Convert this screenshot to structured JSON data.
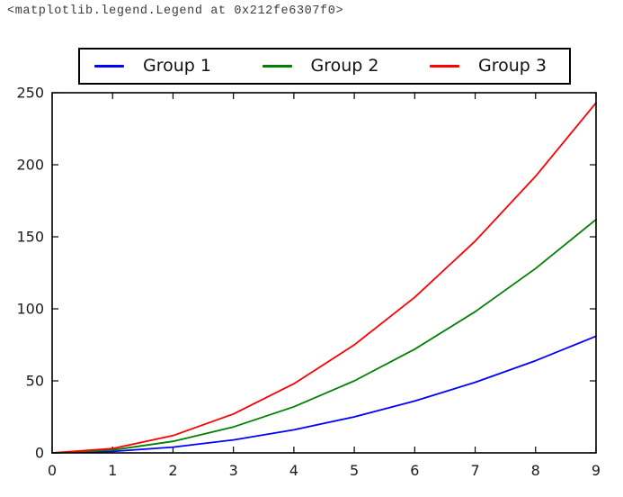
{
  "header": {
    "repr_text": "<matplotlib.legend.Legend at 0x212fe6307f0>"
  },
  "chart_data": {
    "type": "line",
    "title": "",
    "xlabel": "",
    "ylabel": "",
    "x": [
      0,
      1,
      2,
      3,
      4,
      5,
      6,
      7,
      8,
      9
    ],
    "series": [
      {
        "name": "Group 1",
        "color": "#0000ff",
        "values": [
          0,
          1,
          4,
          9,
          16,
          25,
          36,
          49,
          64,
          81
        ]
      },
      {
        "name": "Group 2",
        "color": "#008000",
        "values": [
          0,
          2,
          8,
          18,
          32,
          50,
          72,
          98,
          128,
          162
        ]
      },
      {
        "name": "Group 3",
        "color": "#ff0000",
        "values": [
          0,
          3,
          12,
          27,
          48,
          75,
          108,
          147,
          192,
          243
        ]
      }
    ],
    "xlim": [
      0,
      9
    ],
    "ylim": [
      0,
      250
    ],
    "x_ticks": [
      0,
      1,
      2,
      3,
      4,
      5,
      6,
      7,
      8,
      9
    ],
    "y_ticks": [
      0,
      50,
      100,
      150,
      200,
      250
    ],
    "grid": false,
    "legend_position": "top",
    "frame_color": "#000000",
    "background_color": "#ffffff",
    "tick_label_color": "#1c1c1c"
  }
}
